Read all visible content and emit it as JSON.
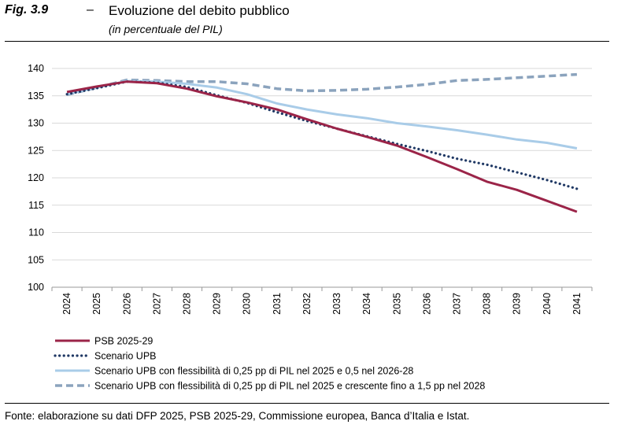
{
  "header": {
    "fig_label": "Fig. 3.9",
    "dash": "–",
    "title": "Evoluzione del debito pubblico",
    "subtitle": "(in percentuale del PIL)"
  },
  "footer": {
    "source": "Fonte: elaborazione su dati DFP 2025, PSB 2025-29, Commissione europea, Banca d’Italia e Istat."
  },
  "chart_data": {
    "type": "line",
    "title": "Evoluzione del debito pubblico",
    "subtitle": "(in percentuale del PIL)",
    "xlabel": "",
    "ylabel": "",
    "ylim": [
      100,
      140
    ],
    "yticks": [
      100,
      105,
      110,
      115,
      120,
      125,
      130,
      135,
      140
    ],
    "grid": "horizontal",
    "legend_position": "bottom",
    "categories": [
      "2024",
      "2025",
      "2026",
      "2027",
      "2028",
      "2029",
      "2030",
      "2031",
      "2032",
      "2033",
      "2034",
      "2035",
      "2036",
      "2037",
      "2038",
      "2039",
      "2040",
      "2041"
    ],
    "series": [
      {
        "name": "PSB 2025-29",
        "color": "#9b2448",
        "style": "solid",
        "values": [
          135.7,
          136.7,
          137.6,
          137.3,
          136.3,
          134.9,
          133.8,
          132.5,
          130.7,
          129.0,
          127.5,
          125.9,
          123.8,
          121.6,
          119.3,
          117.8,
          115.8,
          113.8
        ]
      },
      {
        "name": "Scenario UPB",
        "color": "#1f3864",
        "style": "dotted",
        "values": [
          135.3,
          136.4,
          137.6,
          137.4,
          136.6,
          135.1,
          133.7,
          132.0,
          130.4,
          129.0,
          127.6,
          126.2,
          124.9,
          123.5,
          122.4,
          121.0,
          119.6,
          118.0
        ]
      },
      {
        "name": "Scenario UPB con flessibilità di 0,25 pp di PIL nel 2025 e 0,5 nel 2026-28",
        "color": "#a9cce8",
        "style": "solid",
        "values": [
          135.3,
          136.5,
          137.7,
          137.6,
          137.2,
          136.5,
          135.3,
          133.6,
          132.5,
          131.6,
          130.9,
          130.0,
          129.4,
          128.7,
          127.9,
          127.0,
          126.4,
          125.4
        ]
      },
      {
        "name": "Scenario UPB con flessibilità di 0,25 pp di PIL nel 2025 e crescente fino a 1,5 pp nel 2028",
        "color": "#8ba3bd",
        "style": "dashed",
        "values": [
          135.2,
          136.5,
          137.9,
          137.8,
          137.6,
          137.6,
          137.2,
          136.3,
          135.9,
          136.0,
          136.2,
          136.6,
          137.1,
          137.8,
          138.0,
          138.3,
          138.6,
          138.9
        ]
      }
    ]
  }
}
